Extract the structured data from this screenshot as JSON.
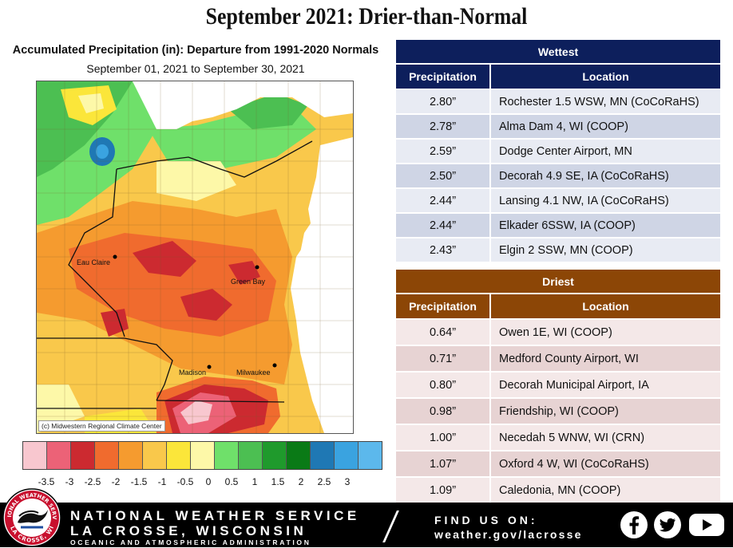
{
  "headline": "September 2021:  Drier-than-Normal",
  "map": {
    "title": "Accumulated Precipitation (in): Departure from 1991-2020 Normals",
    "subtitle": "September 01, 2021 to September 30, 2021",
    "credit": "(c) Midwestern Regional Climate Center",
    "cities": [
      "Eau Claire",
      "Green Bay",
      "Madison",
      "Milwaukee"
    ]
  },
  "legend": {
    "colors": [
      "#f8c7cf",
      "#ec6277",
      "#cc2a30",
      "#f06b2e",
      "#f59b2f",
      "#f9c84b",
      "#fbe63a",
      "#fdf8a8",
      "#6fe06a",
      "#4cbf52",
      "#1f9a2c",
      "#0a7a16",
      "#1f78b4",
      "#3aa3e0",
      "#5cb8ec"
    ],
    "labels": [
      "-3.5",
      "-3",
      "-2.5",
      "-2",
      "-1.5",
      "-1",
      "-0.5",
      "0",
      "0.5",
      "1",
      "1.5",
      "2",
      "2.5",
      "3"
    ]
  },
  "wettest": {
    "title": "Wettest",
    "col_precip": "Precipitation",
    "col_location": "Location",
    "header_color": "#0d1f5c",
    "row_colors": [
      "#e8ebf3",
      "#cfd5e5"
    ],
    "rows": [
      {
        "precip": "2.80”",
        "location": "Rochester 1.5 WSW, MN (CoCoRaHS)"
      },
      {
        "precip": "2.78”",
        "location": "Alma Dam 4, WI (COOP)"
      },
      {
        "precip": "2.59”",
        "location": "Dodge Center Airport, MN"
      },
      {
        "precip": "2.50”",
        "location": "Decorah 4.9 SE, IA (CoCoRaHS)"
      },
      {
        "precip": "2.44”",
        "location": "Lansing 4.1 NW, IA (CoCoRaHS)"
      },
      {
        "precip": "2.44”",
        "location": "Elkader 6SSW, IA (COOP)"
      },
      {
        "precip": "2.43”",
        "location": "Elgin 2 SSW, MN (COOP)"
      }
    ]
  },
  "driest": {
    "title": "Driest",
    "col_precip": "Precipitation",
    "col_location": "Location",
    "header_color": "#8c4606",
    "row_colors": [
      "#f4e8e8",
      "#e7d3d3"
    ],
    "rows": [
      {
        "precip": "0.64”",
        "location": "Owen 1E, WI (COOP)"
      },
      {
        "precip": "0.71”",
        "location": "Medford County Airport, WI"
      },
      {
        "precip": "0.80”",
        "location": "Decorah Municipal Airport, IA"
      },
      {
        "precip": "0.98”",
        "location": "Friendship, WI (COOP)"
      },
      {
        "precip": "1.00”",
        "location": "Necedah 5 WNW, WI (CRN)"
      },
      {
        "precip": "1.07”",
        "location": "Oxford 4 W, WI (CoCoRaHS)"
      },
      {
        "precip": "1.09”",
        "location": "Caledonia, MN (COOP)"
      }
    ]
  },
  "footer": {
    "line1": "NATIONAL WEATHER SERVICE",
    "line2": "LA CROSSE, WISCONSIN",
    "line3": "OCEANIC AND ATMOSPHERIC ADMINISTRATION",
    "find": "FIND US ON:",
    "web": "weather.gov/lacrosse",
    "logo_top": "NATIONAL WEATHER SERVICE",
    "logo_bottom": "LA CROSSE, WI",
    "social_icons": [
      "facebook-icon",
      "twitter-icon",
      "youtube-icon"
    ]
  }
}
